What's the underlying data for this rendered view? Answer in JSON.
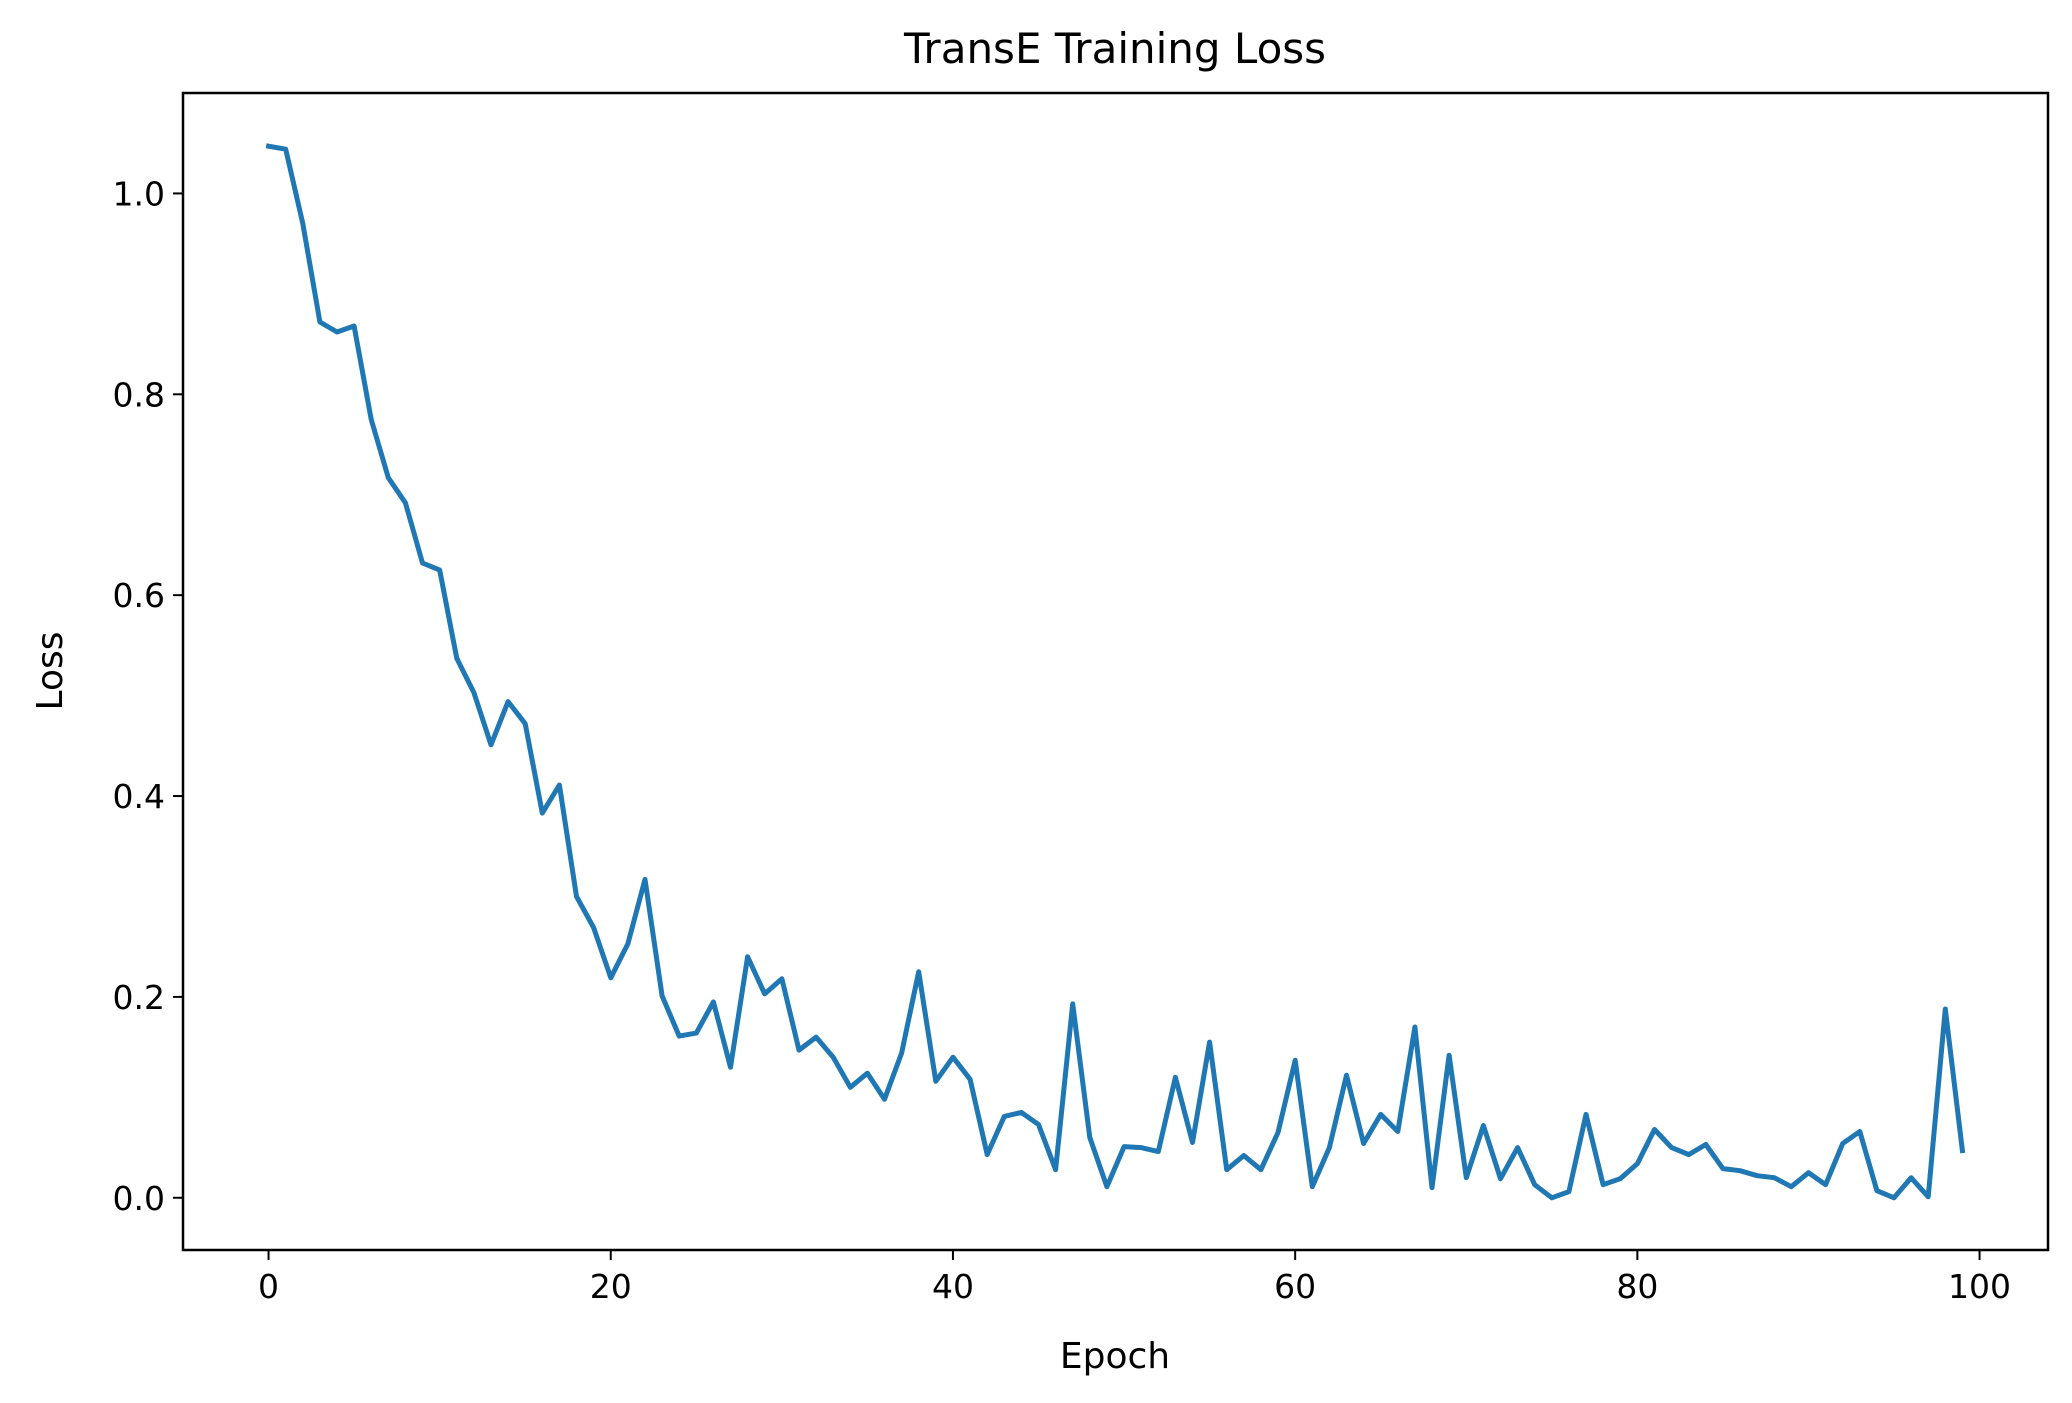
{
  "chart_data": {
    "type": "line",
    "title": "TransE Training Loss",
    "xlabel": "Epoch",
    "ylabel": "Loss",
    "xlim": [
      -5,
      104
    ],
    "ylim": [
      -0.052,
      1.1
    ],
    "xticks": [
      0,
      20,
      40,
      60,
      80,
      100
    ],
    "yticks": [
      0.0,
      0.2,
      0.4,
      0.6,
      0.8,
      1.0
    ],
    "xtick_labels": [
      "0",
      "20",
      "40",
      "60",
      "80",
      "100"
    ],
    "ytick_labels": [
      "0.0",
      "0.2",
      "0.4",
      "0.6",
      "0.8",
      "1.0"
    ],
    "grid": false,
    "legend": "none",
    "series": [
      {
        "color": "#1f77b4",
        "x": [
          0,
          1,
          2,
          3,
          4,
          5,
          6,
          7,
          8,
          9,
          10,
          11,
          12,
          13,
          14,
          15,
          16,
          17,
          18,
          19,
          20,
          21,
          22,
          23,
          24,
          25,
          26,
          27,
          28,
          29,
          30,
          31,
          32,
          33,
          34,
          35,
          36,
          37,
          38,
          39,
          40,
          41,
          42,
          43,
          44,
          45,
          46,
          47,
          48,
          49,
          50,
          51,
          52,
          53,
          54,
          55,
          56,
          57,
          58,
          59,
          60,
          61,
          62,
          63,
          64,
          65,
          66,
          67,
          68,
          69,
          70,
          71,
          72,
          73,
          74,
          75,
          76,
          77,
          78,
          79,
          80,
          81,
          82,
          83,
          84,
          85,
          86,
          87,
          88,
          89,
          90,
          91,
          92,
          93,
          94,
          95,
          96,
          97,
          98,
          99
        ],
        "y": [
          1.047,
          1.044,
          0.97,
          0.872,
          0.862,
          0.868,
          0.775,
          0.717,
          0.692,
          0.632,
          0.625,
          0.537,
          0.503,
          0.451,
          0.494,
          0.472,
          0.383,
          0.411,
          0.3,
          0.269,
          0.219,
          0.253,
          0.317,
          0.201,
          0.161,
          0.164,
          0.195,
          0.13,
          0.24,
          0.203,
          0.218,
          0.147,
          0.16,
          0.14,
          0.11,
          0.124,
          0.098,
          0.144,
          0.225,
          0.116,
          0.14,
          0.118,
          0.043,
          0.081,
          0.085,
          0.073,
          0.028,
          0.193,
          0.06,
          0.011,
          0.051,
          0.05,
          0.046,
          0.12,
          0.055,
          0.155,
          0.028,
          0.042,
          0.028,
          0.065,
          0.137,
          0.011,
          0.05,
          0.122,
          0.054,
          0.083,
          0.066,
          0.17,
          0.01,
          0.142,
          0.02,
          0.072,
          0.019,
          0.05,
          0.013,
          0.0,
          0.006,
          0.083,
          0.013,
          0.019,
          0.034,
          0.068,
          0.05,
          0.043,
          0.053,
          0.029,
          0.027,
          0.022,
          0.02,
          0.011,
          0.025,
          0.013,
          0.054,
          0.066,
          0.007,
          0.0,
          0.02,
          0.001,
          0.188,
          0.047
        ]
      }
    ]
  }
}
